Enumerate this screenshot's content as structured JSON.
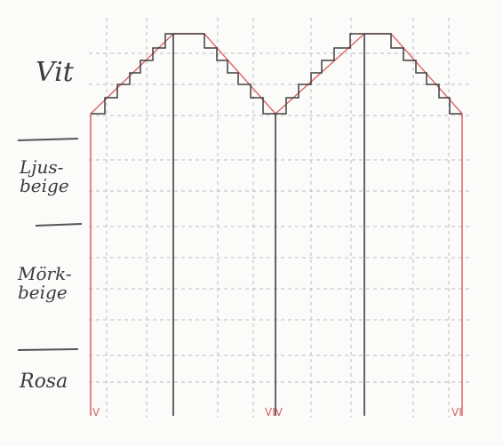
{
  "labels": {
    "vit": "Vit",
    "ljusbeige_1": "Ljus-",
    "ljusbeige_2": "beige",
    "morkbeige_1": "Mörk-",
    "morkbeige_2": "beige",
    "rosa": "Rosa"
  },
  "markers": [
    "V",
    "VIV",
    "VI"
  ],
  "colors": {
    "stair": "#3f3f3f",
    "red_line": "#e06a6a",
    "grid": "#9b9b9b",
    "background": "#fbfbfa"
  }
}
